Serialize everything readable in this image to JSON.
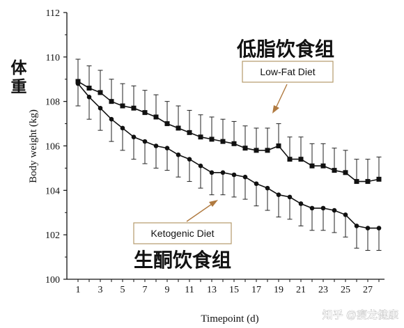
{
  "chart_data": {
    "type": "line",
    "xlabel": "Timepoint (d)",
    "ylabel": "Body weight (kg)",
    "ylabel_chinese": "体重",
    "xlim": [
      0,
      28.5
    ],
    "ylim": [
      100,
      112
    ],
    "x_ticks": [
      1,
      3,
      5,
      7,
      9,
      11,
      13,
      15,
      17,
      19,
      21,
      23,
      25,
      27
    ],
    "y_ticks": [
      100,
      102,
      104,
      106,
      108,
      110,
      112
    ],
    "grid": false,
    "series": [
      {
        "name": "Low-Fat Diet",
        "name_chinese": "低脂饮食组",
        "marker": "square",
        "x": [
          1,
          2,
          3,
          4,
          5,
          6,
          7,
          8,
          9,
          10,
          11,
          12,
          13,
          14,
          15,
          16,
          17,
          18,
          19,
          20,
          21,
          22,
          23,
          24,
          25,
          26,
          27,
          28
        ],
        "y": [
          108.9,
          108.6,
          108.4,
          108.0,
          107.8,
          107.7,
          107.5,
          107.3,
          107.0,
          106.8,
          106.6,
          106.4,
          106.3,
          106.2,
          106.1,
          105.9,
          105.8,
          105.8,
          106.0,
          105.4,
          105.4,
          105.1,
          105.1,
          104.9,
          104.8,
          104.4,
          104.4,
          104.5
        ],
        "error": [
          1.0,
          1.0,
          1.0,
          1.0,
          1.0,
          1.0,
          1.0,
          1.0,
          1.0,
          1.0,
          1.0,
          1.0,
          1.0,
          1.0,
          1.0,
          1.0,
          1.0,
          1.0,
          1.0,
          1.0,
          1.0,
          1.0,
          1.0,
          1.0,
          1.0,
          1.0,
          1.0,
          1.0
        ]
      },
      {
        "name": "Ketogenic Diet",
        "name_chinese": "生酮饮食组",
        "marker": "circle",
        "x": [
          1,
          2,
          3,
          4,
          5,
          6,
          7,
          8,
          9,
          10,
          11,
          12,
          13,
          14,
          15,
          16,
          17,
          18,
          19,
          20,
          21,
          22,
          23,
          24,
          25,
          26,
          27,
          28
        ],
        "y": [
          108.8,
          108.2,
          107.7,
          107.2,
          106.8,
          106.4,
          106.2,
          106.0,
          105.9,
          105.6,
          105.4,
          105.1,
          104.8,
          104.8,
          104.7,
          104.6,
          104.3,
          104.1,
          103.8,
          103.7,
          103.4,
          103.2,
          103.2,
          103.1,
          102.9,
          102.4,
          102.3,
          102.3
        ],
        "error": [
          1.0,
          1.0,
          1.0,
          1.0,
          1.0,
          1.0,
          1.0,
          1.0,
          1.0,
          1.0,
          1.0,
          1.0,
          1.0,
          1.0,
          1.0,
          1.0,
          1.0,
          1.0,
          1.0,
          1.0,
          1.0,
          1.0,
          1.0,
          1.0,
          1.0,
          1.0,
          1.0,
          1.0
        ]
      }
    ],
    "annotations": {
      "low_fat_box_label": "Low-Fat Diet",
      "low_fat_chinese_label": "低脂饮食组",
      "keto_box_label": "Ketogenic Diet",
      "keto_chinese_label": "生酮饮食组"
    }
  },
  "watermark": "知乎 @瘦龙健康"
}
